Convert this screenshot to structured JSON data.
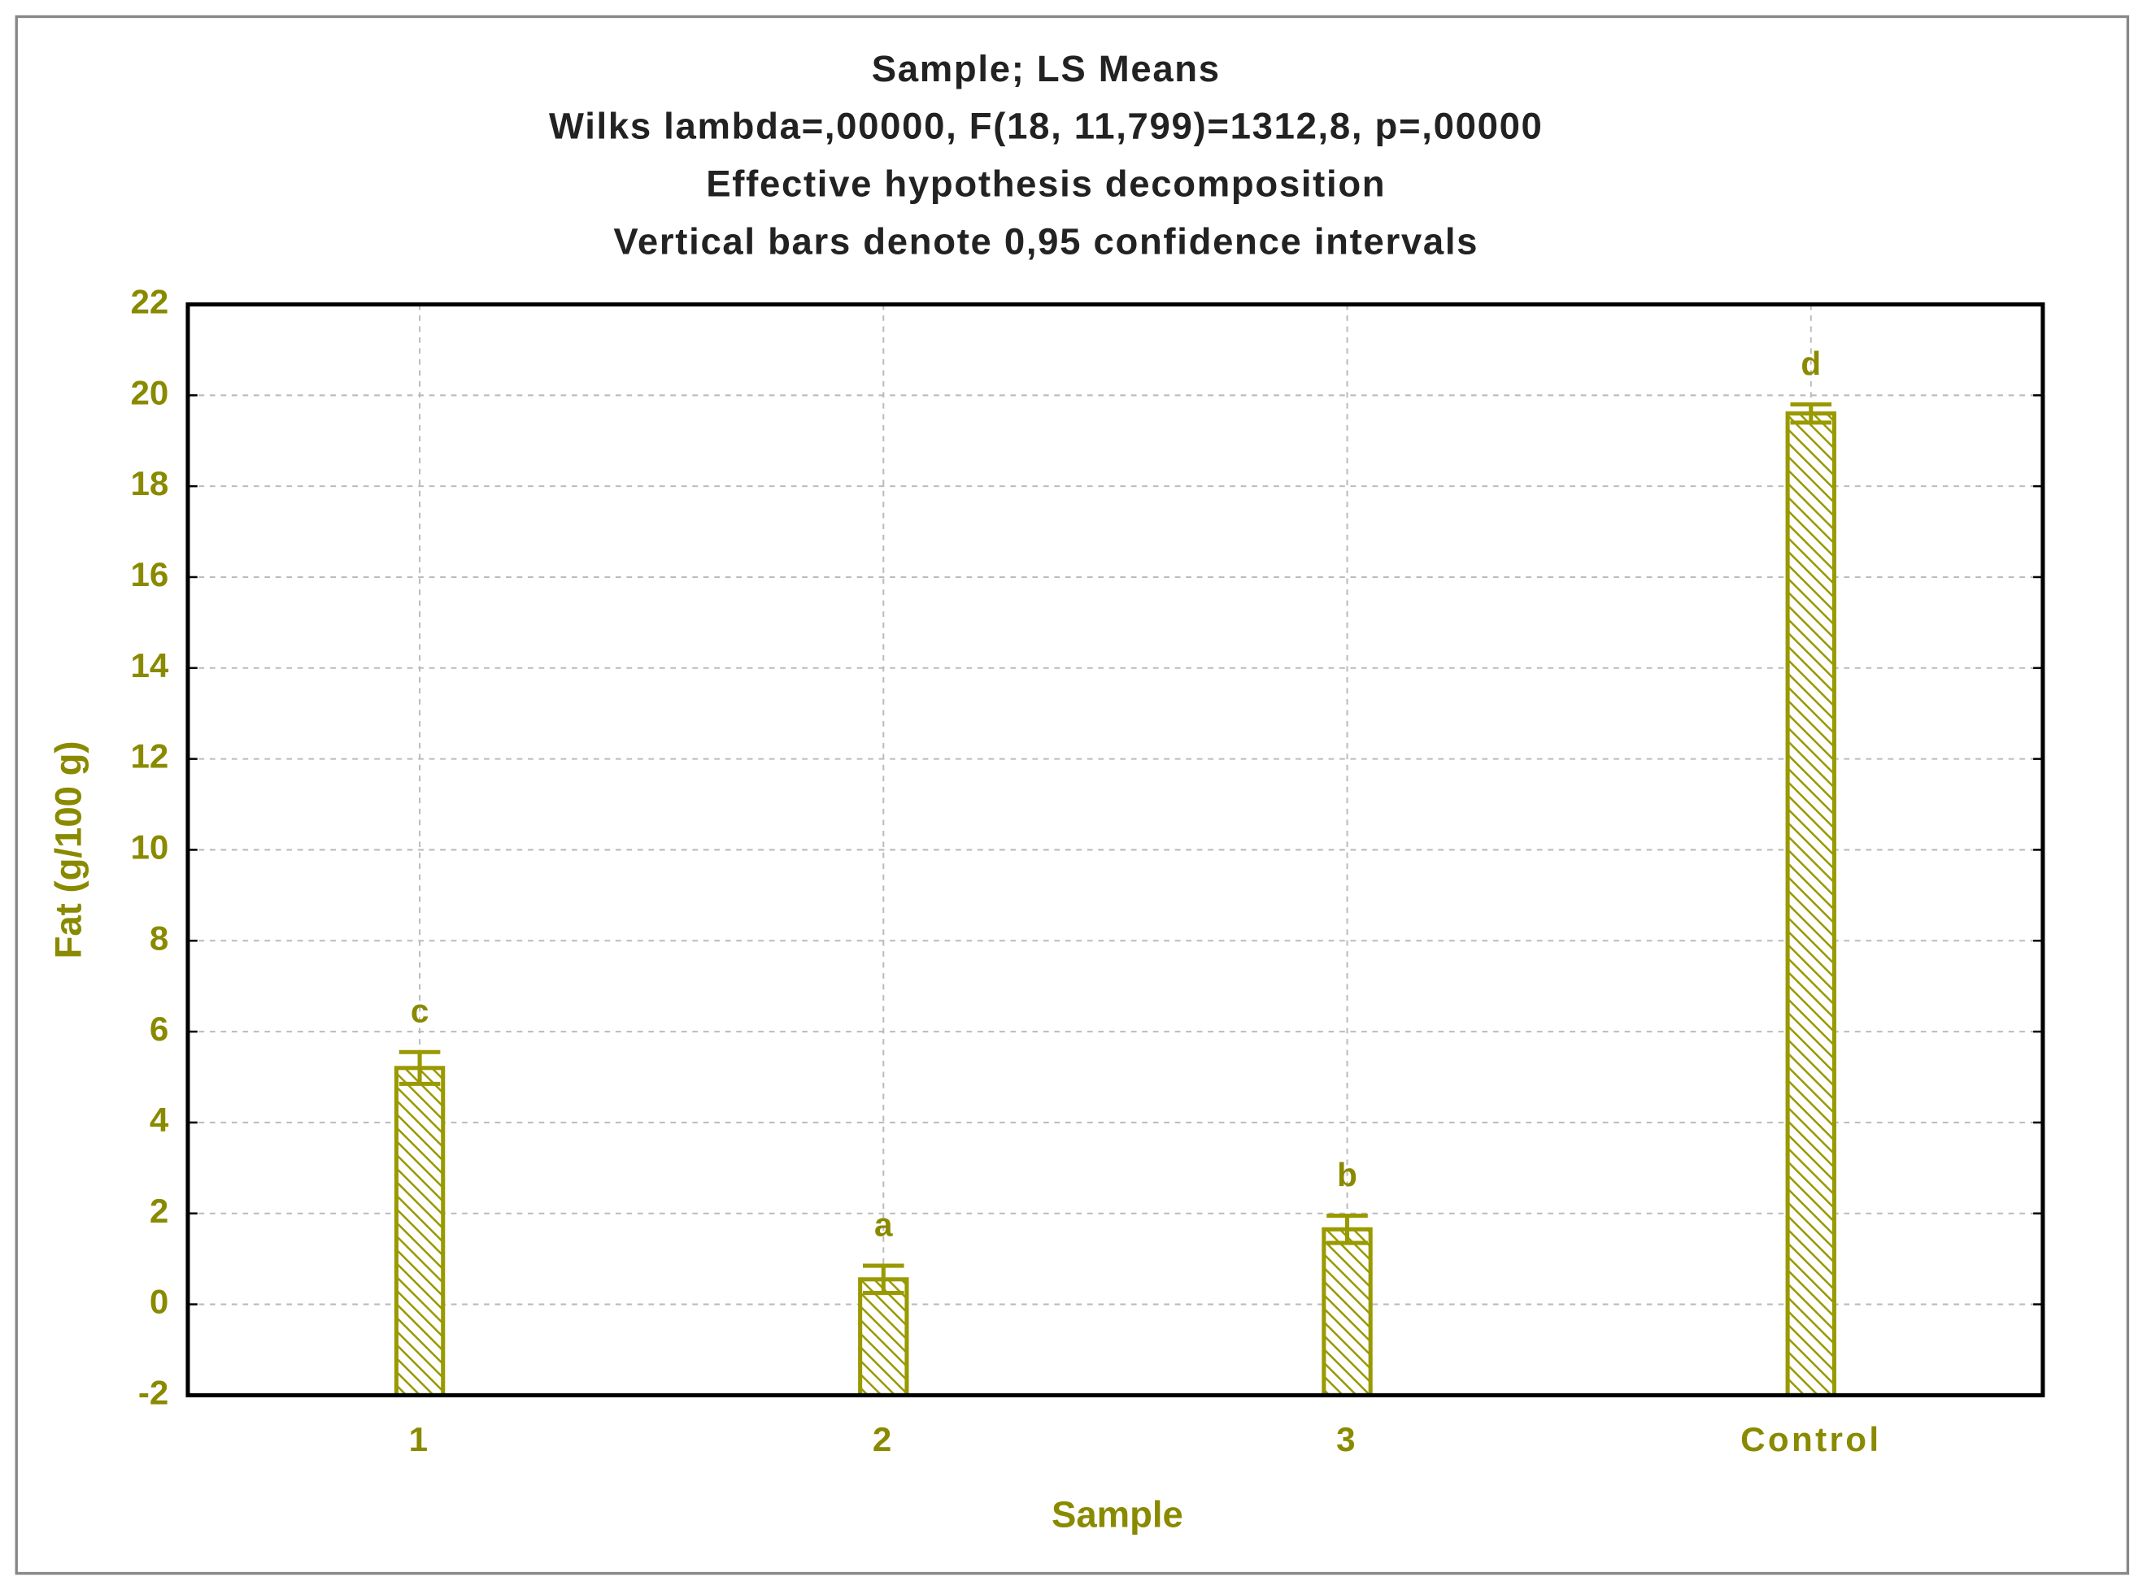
{
  "chart_data": {
    "type": "bar",
    "title": [
      "Sample; LS Means",
      "Wilks lambda=,00000, F(18, 11,799)=1312,8, p=,00000",
      "Effective hypothesis decomposition",
      "Vertical bars denote 0,95 confidence intervals"
    ],
    "x_label": "Sample",
    "y_label": "Fat (g/100 g)",
    "categories": [
      "1",
      "2",
      "3",
      "Control"
    ],
    "values": [
      5.2,
      0.55,
      1.65,
      19.6
    ],
    "errors": [
      0.35,
      0.3,
      0.3,
      0.2
    ],
    "annotations": [
      "c",
      "a",
      "b",
      "d"
    ],
    "color": "#999900",
    "ylim": [
      -2,
      22
    ],
    "yticks": [
      -2,
      0,
      2,
      4,
      6,
      8,
      10,
      12,
      14,
      16,
      18,
      20,
      22
    ],
    "grid": true
  }
}
